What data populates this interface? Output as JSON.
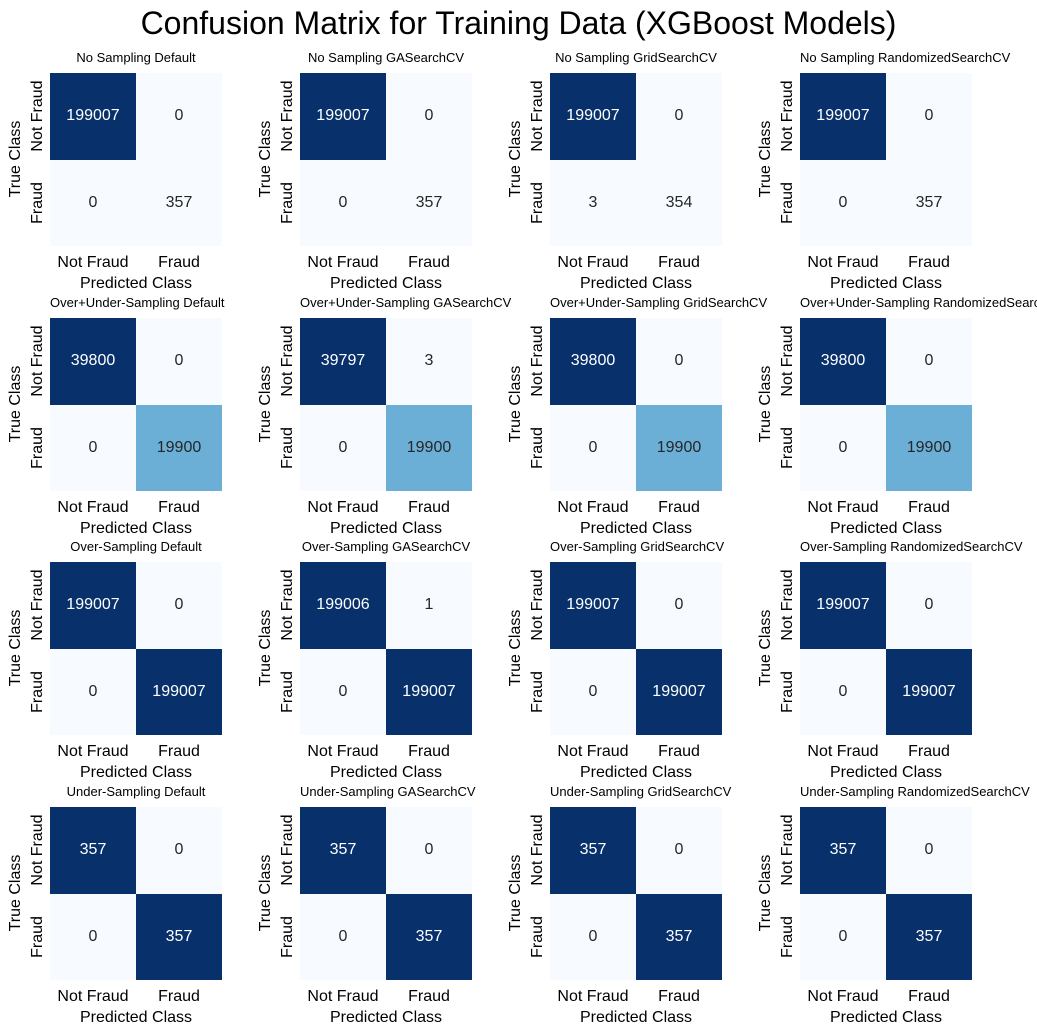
{
  "chart_data": {
    "type": "heatmap",
    "title": "Confusion Matrix for Training Data (XGBoost Models)",
    "layout": "4x4 grid of confusion matrices",
    "colormap": "Blues",
    "x_tick_labels": [
      "Not Fraud",
      "Fraud"
    ],
    "y_tick_labels": [
      "Not Fraud",
      "Fraud"
    ],
    "xlabel": "Predicted Class",
    "ylabel": "True Class",
    "panels": [
      {
        "title": "No Sampling Default",
        "matrix": [
          [
            199007,
            0
          ],
          [
            0,
            357
          ]
        ]
      },
      {
        "title": "No Sampling GASearchCV",
        "matrix": [
          [
            199007,
            0
          ],
          [
            0,
            357
          ]
        ]
      },
      {
        "title": "No Sampling GridSearchCV",
        "matrix": [
          [
            199007,
            0
          ],
          [
            3,
            354
          ]
        ]
      },
      {
        "title": "No Sampling RandomizedSearchCV",
        "matrix": [
          [
            199007,
            0
          ],
          [
            0,
            357
          ]
        ]
      },
      {
        "title": "Over+Under-Sampling Default",
        "matrix": [
          [
            39800,
            0
          ],
          [
            0,
            19900
          ]
        ]
      },
      {
        "title": "Over+Under-Sampling GASearchCV",
        "matrix": [
          [
            39797,
            3
          ],
          [
            0,
            19900
          ]
        ]
      },
      {
        "title": "Over+Under-Sampling GridSearchCV",
        "matrix": [
          [
            39800,
            0
          ],
          [
            0,
            19900
          ]
        ]
      },
      {
        "title": "Over+Under-Sampling RandomizedSearchCV",
        "matrix": [
          [
            39800,
            0
          ],
          [
            0,
            19900
          ]
        ]
      },
      {
        "title": "Over-Sampling Default",
        "matrix": [
          [
            199007,
            0
          ],
          [
            0,
            199007
          ]
        ]
      },
      {
        "title": "Over-Sampling GASearchCV",
        "matrix": [
          [
            199006,
            1
          ],
          [
            0,
            199007
          ]
        ]
      },
      {
        "title": "Over-Sampling GridSearchCV",
        "matrix": [
          [
            199007,
            0
          ],
          [
            0,
            199007
          ]
        ]
      },
      {
        "title": "Over-Sampling RandomizedSearchCV",
        "matrix": [
          [
            199007,
            0
          ],
          [
            0,
            199007
          ]
        ]
      },
      {
        "title": "Under-Sampling Default",
        "matrix": [
          [
            357,
            0
          ],
          [
            0,
            357
          ]
        ]
      },
      {
        "title": "Under-Sampling GASearchCV",
        "matrix": [
          [
            357,
            0
          ],
          [
            0,
            357
          ]
        ]
      },
      {
        "title": "Under-Sampling GridSearchCV",
        "matrix": [
          [
            357,
            0
          ],
          [
            0,
            357
          ]
        ]
      },
      {
        "title": "Under-Sampling RandomizedSearchCV",
        "matrix": [
          [
            357,
            0
          ],
          [
            0,
            357
          ]
        ]
      }
    ]
  }
}
